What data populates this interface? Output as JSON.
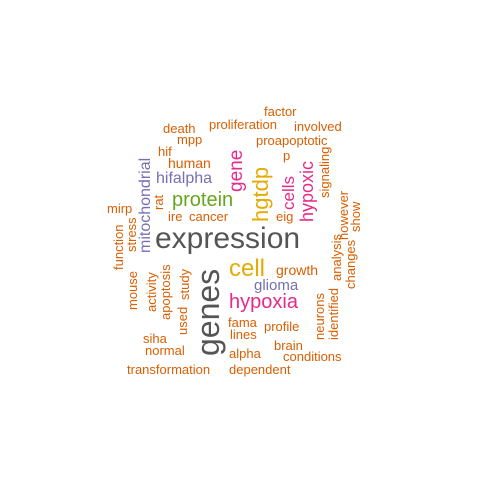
{
  "palette": {
    "dark_gray": "#555555",
    "orange": "#d95f02",
    "green": "#66a61e",
    "gold": "#e6ab02",
    "magenta": "#e7298a",
    "purple": "#7570b3"
  },
  "words": [
    {
      "text": "expression",
      "color": "dark_gray"
    },
    {
      "text": "genes",
      "color": "dark_gray"
    },
    {
      "text": "hgtdp",
      "color": "gold"
    },
    {
      "text": "cell",
      "color": "gold"
    },
    {
      "text": "protein",
      "color": "green"
    },
    {
      "text": "hypoxia",
      "color": "magenta"
    },
    {
      "text": "hypoxic",
      "color": "magenta"
    },
    {
      "text": "gene",
      "color": "magenta"
    },
    {
      "text": "cells",
      "color": "magenta"
    },
    {
      "text": "hifalpha",
      "color": "purple"
    },
    {
      "text": "mitochondrial",
      "color": "purple"
    },
    {
      "text": "glioma",
      "color": "purple"
    },
    {
      "text": "factor",
      "color": "orange"
    },
    {
      "text": "proliferation",
      "color": "orange"
    },
    {
      "text": "involved",
      "color": "orange"
    },
    {
      "text": "death",
      "color": "orange"
    },
    {
      "text": "mpp",
      "color": "orange"
    },
    {
      "text": "proapoptotic",
      "color": "orange"
    },
    {
      "text": "hif",
      "color": "orange"
    },
    {
      "text": "human",
      "color": "orange"
    },
    {
      "text": "p",
      "color": "orange"
    },
    {
      "text": "signaling",
      "color": "orange"
    },
    {
      "text": "rat",
      "color": "orange"
    },
    {
      "text": "mirp",
      "color": "orange"
    },
    {
      "text": "stress",
      "color": "orange"
    },
    {
      "text": "function",
      "color": "orange"
    },
    {
      "text": "ire",
      "color": "orange"
    },
    {
      "text": "cancer",
      "color": "orange"
    },
    {
      "text": "eig",
      "color": "orange"
    },
    {
      "text": "however",
      "color": "orange"
    },
    {
      "text": "show",
      "color": "orange"
    },
    {
      "text": "analysis",
      "color": "orange"
    },
    {
      "text": "changes",
      "color": "orange"
    },
    {
      "text": "growth",
      "color": "orange"
    },
    {
      "text": "mouse",
      "color": "orange"
    },
    {
      "text": "activity",
      "color": "orange"
    },
    {
      "text": "apoptosis",
      "color": "orange"
    },
    {
      "text": "study",
      "color": "orange"
    },
    {
      "text": "used",
      "color": "orange"
    },
    {
      "text": "neurons",
      "color": "orange"
    },
    {
      "text": "identified",
      "color": "orange"
    },
    {
      "text": "fama",
      "color": "orange"
    },
    {
      "text": "profile",
      "color": "orange"
    },
    {
      "text": "lines",
      "color": "orange"
    },
    {
      "text": "siha",
      "color": "orange"
    },
    {
      "text": "brain",
      "color": "orange"
    },
    {
      "text": "normal",
      "color": "orange"
    },
    {
      "text": "alpha",
      "color": "orange"
    },
    {
      "text": "conditions",
      "color": "orange"
    },
    {
      "text": "transformation",
      "color": "orange"
    },
    {
      "text": "dependent",
      "color": "orange"
    }
  ]
}
